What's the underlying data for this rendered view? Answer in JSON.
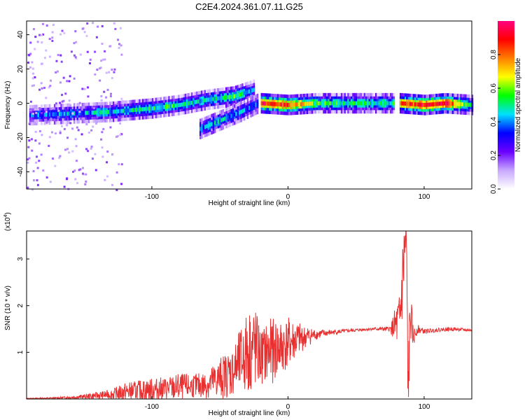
{
  "chart_data": [
    {
      "type": "heatmap",
      "title": "C2E4.2024.361.07.11.G25",
      "xlabel": "Height of straight line (km)",
      "ylabel": "Frequency (Hz)",
      "xlim": [
        -192,
        135
      ],
      "ylim": [
        -50,
        48
      ],
      "xticks": [
        -100,
        0,
        100
      ],
      "yticks": [
        -40,
        -20,
        0,
        20,
        40
      ],
      "colorbar": {
        "label": "Normalized spectral amplitude",
        "range": [
          0,
          1
        ],
        "ticks": [
          0.0,
          0.2,
          0.4,
          0.6,
          0.8
        ],
        "colors": [
          "#ffffff",
          "#c8a8ff",
          "#6a00ff",
          "#0000ff",
          "#00e0ff",
          "#00ff00",
          "#ffff00",
          "#ff7f00",
          "#ff0000",
          "#ff0080"
        ]
      },
      "ridge": {
        "segments": [
          {
            "x": [
              -190,
              -160,
              -130,
              -100,
              -80,
              -60,
              -40,
              -25
            ],
            "y": [
              -7,
              -6,
              -5,
              -3,
              -1,
              2,
              4,
              8
            ],
            "amplitude": [
              0.35,
              0.4,
              0.45,
              0.5,
              0.5,
              0.45,
              0.55,
              0.4
            ]
          },
          {
            "x": [
              -65,
              -50,
              -35,
              -22
            ],
            "y": [
              -15,
              -10,
              -5,
              0
            ],
            "amplitude": [
              0.4,
              0.45,
              0.4,
              0.35
            ]
          },
          {
            "x": [
              -20,
              0,
              20,
              40,
              60,
              78
            ],
            "y": [
              0,
              -1,
              0,
              0,
              0,
              0
            ],
            "amplitude": [
              0.9,
              0.85,
              0.55,
              0.5,
              0.5,
              0.5
            ]
          },
          {
            "x": [
              82,
              100,
              115,
              135
            ],
            "y": [
              0,
              -1,
              0,
              -1
            ],
            "amplitude": [
              0.8,
              0.9,
              0.95,
              0.45
            ]
          }
        ]
      }
    },
    {
      "type": "line",
      "xlabel": "Height of straight line (km)",
      "ylabel": "SNR (10 * v/v)",
      "y_multiplier": "(x10",
      "y_multiplier_exponent": "4",
      "xlim": [
        -192,
        135
      ],
      "ylim": [
        0,
        3.6
      ],
      "xticks": [
        -100,
        0,
        100
      ],
      "yticks": [
        1,
        2,
        3
      ],
      "series": [
        {
          "color": "#e83030",
          "x": [
            -192,
            -170,
            -150,
            -130,
            -120,
            -110,
            -100,
            -90,
            -80,
            -70,
            -60,
            -50,
            -40,
            -35,
            -30,
            -25,
            -20,
            -15,
            -10,
            -5,
            0,
            5,
            10,
            20,
            30,
            40,
            60,
            75,
            82,
            85,
            87,
            88,
            90,
            92,
            95,
            100,
            110,
            120,
            135
          ],
          "y": [
            0.01,
            0.02,
            0.05,
            0.1,
            0.15,
            0.18,
            0.2,
            0.22,
            0.25,
            0.28,
            0.3,
            0.45,
            0.6,
            0.8,
            1.0,
            1.1,
            0.9,
            1.0,
            1.05,
            1.1,
            1.2,
            1.25,
            1.3,
            1.38,
            1.42,
            1.45,
            1.5,
            1.5,
            1.6,
            2.9,
            3.5,
            0.1,
            1.8,
            1.3,
            1.5,
            1.45,
            1.48,
            1.5,
            1.47
          ],
          "noise": [
            0.01,
            0.02,
            0.05,
            0.1,
            0.2,
            0.22,
            0.25,
            0.25,
            0.3,
            0.25,
            0.3,
            0.45,
            0.55,
            0.7,
            0.9,
            1.0,
            0.6,
            0.7,
            0.7,
            0.6,
            0.55,
            0.45,
            0.3,
            0.12,
            0.06,
            0.04,
            0.03,
            0.05,
            0.7,
            1.0,
            1.0,
            1.0,
            0.6,
            0.2,
            0.1,
            0.05,
            0.04,
            0.04,
            0.03
          ]
        }
      ]
    }
  ]
}
